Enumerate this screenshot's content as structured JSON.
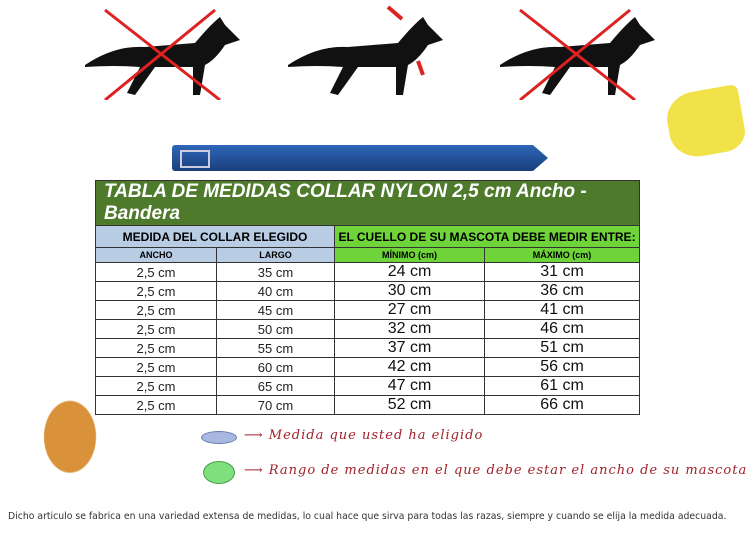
{
  "table": {
    "title": "TABLA DE MEDIDAS COLLAR NYLON 2,5 cm Ancho - Bandera",
    "group_left": "MEDIDA DEL COLLAR ELEGIDO",
    "group_right": "EL CUELLO DE SU MASCOTA DEBE MEDIR ENTRE:",
    "columns": [
      "ANCHO",
      "LARGO",
      "MÍNIMO (cm)",
      "MÁXIMO (cm)"
    ],
    "rows": [
      [
        "2,5 cm",
        "35 cm",
        "24 cm",
        "31 cm"
      ],
      [
        "2,5 cm",
        "40 cm",
        "30 cm",
        "36 cm"
      ],
      [
        "2,5 cm",
        "45 cm",
        "27 cm",
        "41 cm"
      ],
      [
        "2,5 cm",
        "50 cm",
        "32 cm",
        "46 cm"
      ],
      [
        "2,5 cm",
        "55 cm",
        "37 cm",
        "51 cm"
      ],
      [
        "2,5 cm",
        "60 cm",
        "42 cm",
        "56 cm"
      ],
      [
        "2,5 cm",
        "65 cm",
        "47 cm",
        "61 cm"
      ],
      [
        "2,5 cm",
        "70 cm",
        "52 cm",
        "66 cm"
      ]
    ]
  },
  "legend": {
    "chosen": "Medida que usted ha eligido",
    "range": "Rango de medidas en el que debe estar el ancho de su mascota",
    "colors": {
      "chosen": "#a9b8e0",
      "range": "#7de07d",
      "arrow": "#a0222a"
    }
  },
  "footer": "Dicho articulo se fabrica en una variedad extensa de medidas, lo cual hace que sirva para todas las razas, siempre y cuando se elija la medida adecuada."
}
